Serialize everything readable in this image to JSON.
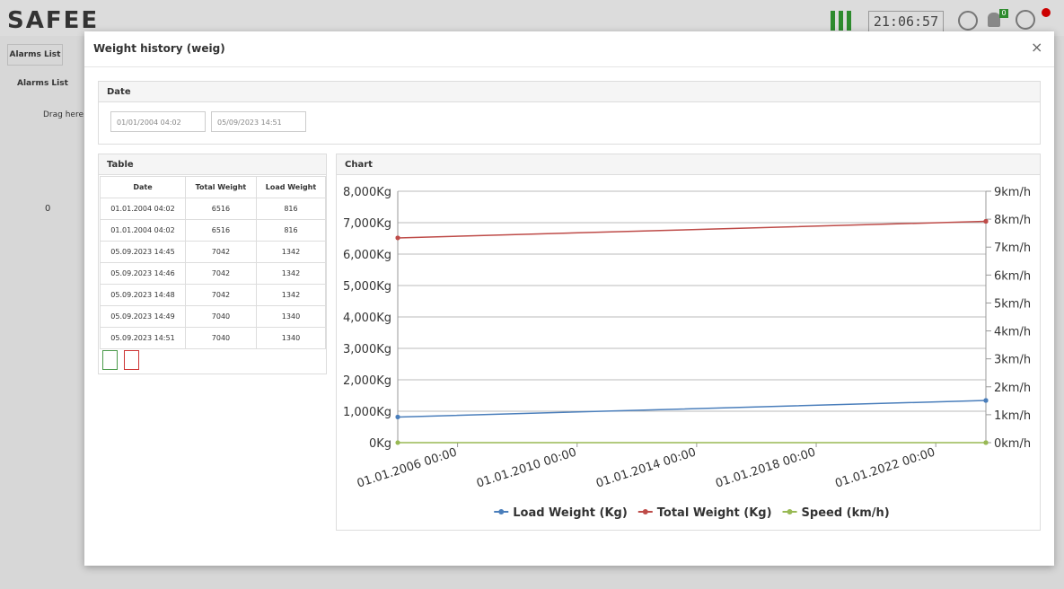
{
  "header": {
    "logo": "SAFEE",
    "clock": "21:06:57",
    "badge": "0"
  },
  "background": {
    "tab": "Alarms List",
    "panel_title": "Alarms List",
    "drag_hint": "Drag here",
    "count": "0"
  },
  "dialog": {
    "title": "Weight history (weig)",
    "close": "×",
    "date_panel": {
      "title": "Date",
      "from": "01/01/2004 04:02",
      "to": "05/09/2023 14:51"
    },
    "table_panel": {
      "title": "Table"
    },
    "chart_panel": {
      "title": "Chart"
    }
  },
  "table": {
    "headers": [
      "Date",
      "Total Weight",
      "Load Weight"
    ],
    "rows": [
      [
        "01.01.2004 04:02",
        6516,
        816
      ],
      [
        "01.01.2004 04:02",
        6516,
        816
      ],
      [
        "05.09.2023 14:45",
        7042,
        1342
      ],
      [
        "05.09.2023 14:46",
        7042,
        1342
      ],
      [
        "05.09.2023 14:48",
        7042,
        1342
      ],
      [
        "05.09.2023 14:49",
        7040,
        1340
      ],
      [
        "05.09.2023 14:51",
        7040,
        1340
      ]
    ]
  },
  "chart_data": {
    "type": "line",
    "x": [
      "01.01.2004 04:02",
      "01.01.2004 04:02",
      "05.09.2023 14:45",
      "05.09.2023 14:46",
      "05.09.2023 14:48",
      "05.09.2023 14:49",
      "05.09.2023 14:51"
    ],
    "xlim": [
      "01.01.2004 04:02",
      "05.09.2023 14:51"
    ],
    "xticks": [
      "01.01.2006 00:00",
      "01.01.2010 00:00",
      "01.01.2014 00:00",
      "01.01.2018 00:00",
      "01.01.2022 00:00"
    ],
    "ylim": [
      0,
      8000
    ],
    "yticks": [
      {
        "value": 0,
        "label": "0Kg"
      },
      {
        "value": 1000,
        "label": "1,000Kg"
      },
      {
        "value": 2000,
        "label": "2,000Kg"
      },
      {
        "value": 3000,
        "label": "3,000Kg"
      },
      {
        "value": 4000,
        "label": "4,000Kg"
      },
      {
        "value": 5000,
        "label": "5,000Kg"
      },
      {
        "value": 6000,
        "label": "6,000Kg"
      },
      {
        "value": 7000,
        "label": "7,000Kg"
      },
      {
        "value": 8000,
        "label": "8,000Kg"
      }
    ],
    "y2lim": [
      0,
      9
    ],
    "y2ticks": [
      {
        "value": 0,
        "label": "0km/h"
      },
      {
        "value": 1,
        "label": "1km/h"
      },
      {
        "value": 2,
        "label": "2km/h"
      },
      {
        "value": 3,
        "label": "3km/h"
      },
      {
        "value": 4,
        "label": "4km/h"
      },
      {
        "value": 5,
        "label": "5km/h"
      },
      {
        "value": 6,
        "label": "6km/h"
      },
      {
        "value": 7,
        "label": "7km/h"
      },
      {
        "value": 8,
        "label": "8km/h"
      },
      {
        "value": 9,
        "label": "9km/h"
      }
    ],
    "grid": true,
    "series": [
      {
        "name": "Load Weight (Kg)",
        "color": "#4a7ebb",
        "values": [
          816,
          816,
          1342,
          1342,
          1342,
          1340,
          1340
        ]
      },
      {
        "name": "Total Weight (Kg)",
        "color": "#be4b48",
        "values": [
          6516,
          6516,
          7042,
          7042,
          7042,
          7040,
          7040
        ]
      },
      {
        "name": "Speed (km/h)",
        "color": "#98b954",
        "axis": "y2",
        "values": [
          0,
          0,
          0,
          0,
          0,
          0,
          0
        ]
      }
    ]
  }
}
